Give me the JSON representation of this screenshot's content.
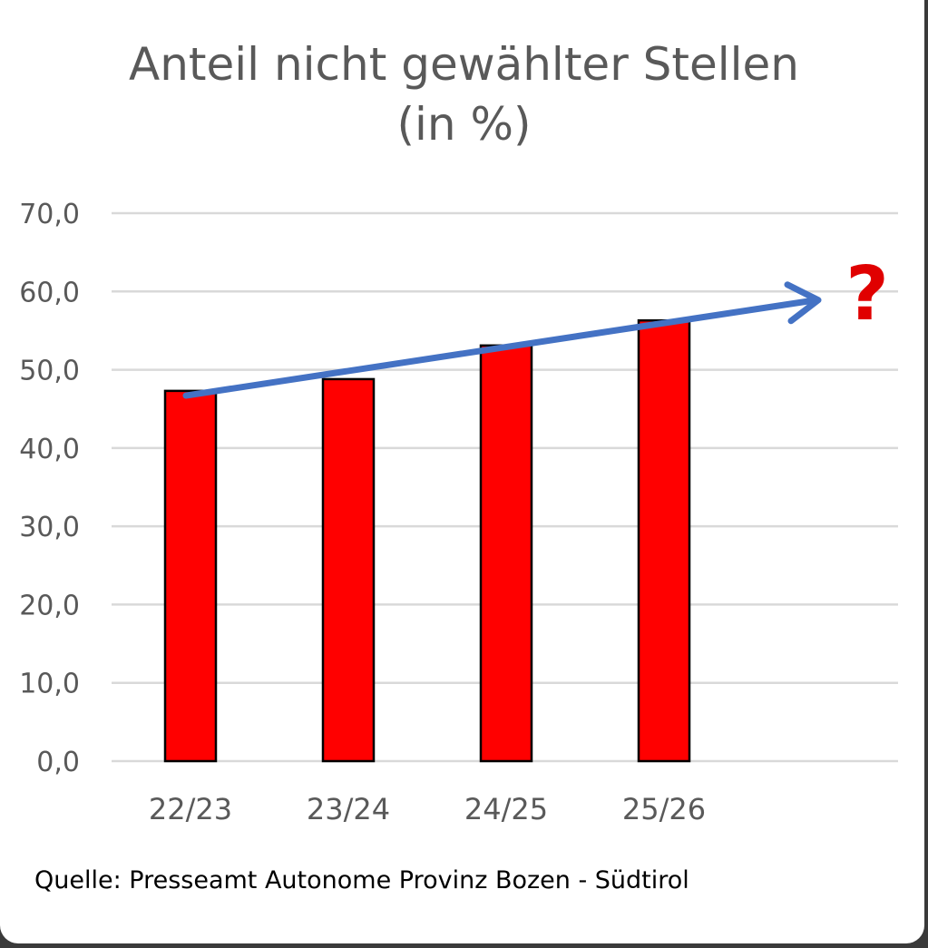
{
  "chart_data": {
    "type": "bar",
    "title_line1": "Anteil nicht gewählter Stellen",
    "title_line2": "(in %)",
    "categories": [
      "22/23",
      "23/24",
      "24/25",
      "25/26"
    ],
    "values": [
      47.3,
      48.8,
      53.1,
      56.3
    ],
    "ylim": [
      0,
      70
    ],
    "yticks": [
      "0,0",
      "10,0",
      "20,0",
      "30,0",
      "40,0",
      "50,0",
      "60,0",
      "70,0"
    ],
    "grid": true,
    "trend_arrow": {
      "from_value": 46.7,
      "to_value": 58.9
    },
    "annotation": "?",
    "colors": {
      "bar": "#ff0000",
      "bar_border": "#000000",
      "arrow": "#4472c4",
      "annotation": "#e00000",
      "grid": "#d9d9d9",
      "tick_text": "#595959"
    }
  },
  "source": "Quelle: Presseamt Autonome Provinz Bozen - Südtirol"
}
